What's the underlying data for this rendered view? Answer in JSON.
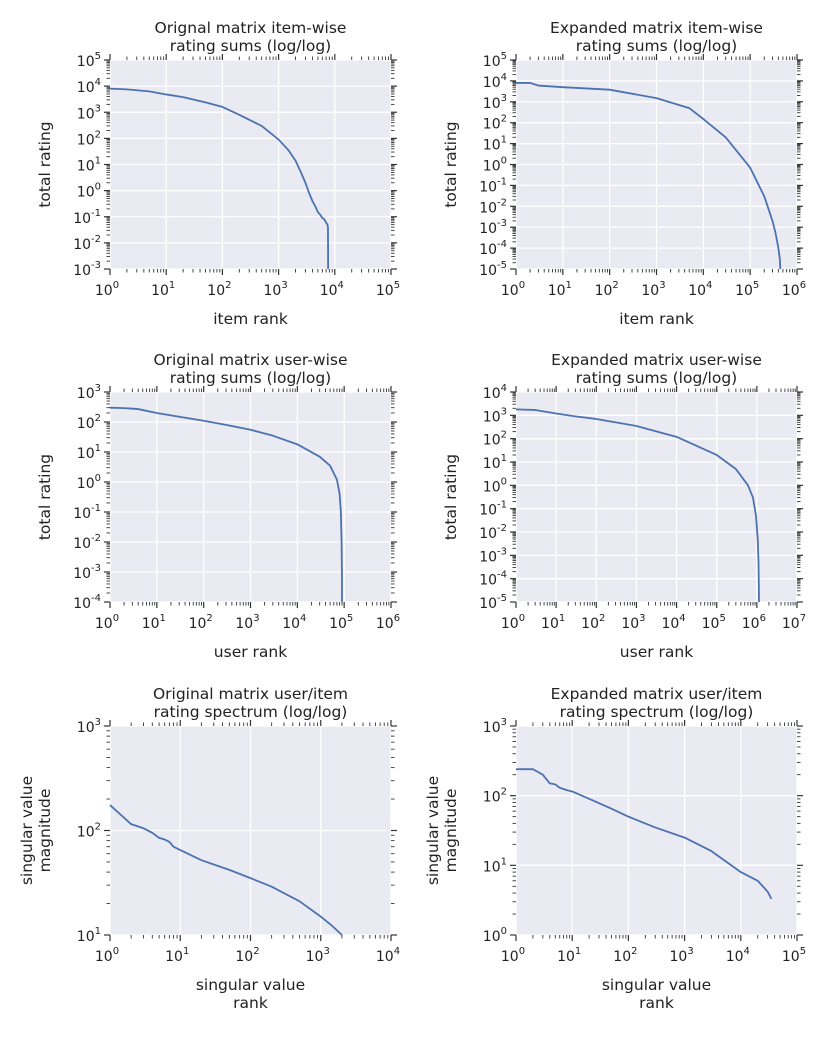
{
  "colors": {
    "plot_background": "#eaeaf2",
    "grid": "#ffffff",
    "line": "#4c72b0",
    "tick": "#333333",
    "text": "#222222"
  },
  "chart_data": [
    {
      "type": "line",
      "title_lines": [
        "Orignal matrix item-wise",
        "rating sums (log/log)"
      ],
      "xlabel_lines": [
        "item rank"
      ],
      "ylabel_lines": [
        "total rating"
      ],
      "xscale": "log",
      "yscale": "log",
      "xlim_exp": [
        0,
        5
      ],
      "ylim_exp": [
        -3,
        5
      ],
      "xticks_exp": [
        0,
        1,
        2,
        3,
        4,
        5
      ],
      "yticks_exp": [
        -3,
        -2,
        -1,
        0,
        1,
        2,
        3,
        4,
        5
      ],
      "xtick_labels": [
        {
          "base": "10",
          "exp": "0"
        },
        {
          "base": "10",
          "exp": "1"
        },
        {
          "base": "10",
          "exp": "2"
        },
        {
          "base": "10",
          "exp": "3"
        },
        {
          "base": "10",
          "exp": "4"
        },
        {
          "base": "10",
          "exp": "5"
        }
      ],
      "ytick_labels": [
        {
          "base": "10",
          "exp": "-3"
        },
        {
          "base": "10",
          "exp": "-2"
        },
        {
          "base": "10",
          "exp": "-1"
        },
        {
          "base": "10",
          "exp": "0"
        },
        {
          "base": "10",
          "exp": "1"
        },
        {
          "base": "10",
          "exp": "2"
        },
        {
          "base": "10",
          "exp": "3"
        },
        {
          "base": "10",
          "exp": "4"
        },
        {
          "base": "10",
          "exp": "5"
        }
      ],
      "series": [
        {
          "name": "item-wise rating sums",
          "x": [
            1,
            2,
            5,
            10,
            20,
            50,
            100,
            200,
            500,
            1000,
            1500,
            2000,
            2500,
            3000,
            3500,
            4000,
            4500,
            5000,
            5500,
            6000,
            6500,
            7000,
            7400,
            7550,
            7600,
            7600
          ],
          "y": [
            8000,
            7500,
            6300,
            4800,
            3800,
            2400,
            1600,
            800,
            300,
            90,
            35,
            14,
            5,
            2,
            0.8,
            0.4,
            0.25,
            0.15,
            0.12,
            0.09,
            0.08,
            0.06,
            0.05,
            0.04,
            0.004,
            0.001
          ]
        }
      ]
    },
    {
      "type": "line",
      "title_lines": [
        "Expanded matrix item-wise",
        "rating sums (log/log)"
      ],
      "xlabel_lines": [
        "item rank"
      ],
      "ylabel_lines": [
        "total rating"
      ],
      "xscale": "log",
      "yscale": "log",
      "xlim_exp": [
        0,
        6
      ],
      "ylim_exp": [
        -5,
        5
      ],
      "xticks_exp": [
        0,
        1,
        2,
        3,
        4,
        5,
        6
      ],
      "yticks_exp": [
        -5,
        -4,
        -3,
        -2,
        -1,
        0,
        1,
        2,
        3,
        4,
        5
      ],
      "xtick_labels": [
        {
          "base": "10",
          "exp": "0"
        },
        {
          "base": "10",
          "exp": "1"
        },
        {
          "base": "10",
          "exp": "2"
        },
        {
          "base": "10",
          "exp": "3"
        },
        {
          "base": "10",
          "exp": "4"
        },
        {
          "base": "10",
          "exp": "5"
        },
        {
          "base": "10",
          "exp": "6"
        }
      ],
      "ytick_labels": [
        {
          "base": "10",
          "exp": "-5"
        },
        {
          "base": "10",
          "exp": "-4"
        },
        {
          "base": "10",
          "exp": "-3"
        },
        {
          "base": "10",
          "exp": "-2"
        },
        {
          "base": "10",
          "exp": "-1"
        },
        {
          "base": "10",
          "exp": "0"
        },
        {
          "base": "10",
          "exp": "1"
        },
        {
          "base": "10",
          "exp": "2"
        },
        {
          "base": "10",
          "exp": "3"
        },
        {
          "base": "10",
          "exp": "4"
        },
        {
          "base": "10",
          "exp": "5"
        }
      ],
      "series": [
        {
          "name": "item-wise rating sums",
          "x": [
            1,
            2,
            3,
            10,
            100,
            1000,
            5000,
            10000,
            30000,
            100000,
            200000,
            300000,
            350000,
            400000,
            430000,
            440000
          ],
          "y": [
            8000,
            8000,
            6000,
            5000,
            3800,
            1500,
            500,
            150,
            20,
            0.7,
            0.03,
            0.002,
            0.0005,
            0.0001,
            3e-05,
            1e-05
          ]
        }
      ]
    },
    {
      "type": "line",
      "title_lines": [
        "Original matrix user-wise",
        "rating sums (log/log)"
      ],
      "xlabel_lines": [
        "user rank"
      ],
      "ylabel_lines": [
        "total rating"
      ],
      "xscale": "log",
      "yscale": "log",
      "xlim_exp": [
        0,
        6
      ],
      "ylim_exp": [
        -4,
        3
      ],
      "xticks_exp": [
        0,
        1,
        2,
        3,
        4,
        5,
        6
      ],
      "yticks_exp": [
        -4,
        -3,
        -2,
        -1,
        0,
        1,
        2,
        3
      ],
      "xtick_labels": [
        {
          "base": "10",
          "exp": "0"
        },
        {
          "base": "10",
          "exp": "1"
        },
        {
          "base": "10",
          "exp": "2"
        },
        {
          "base": "10",
          "exp": "3"
        },
        {
          "base": "10",
          "exp": "4"
        },
        {
          "base": "10",
          "exp": "5"
        },
        {
          "base": "10",
          "exp": "6"
        }
      ],
      "ytick_labels": [
        {
          "base": "10",
          "exp": "-4"
        },
        {
          "base": "10",
          "exp": "-3"
        },
        {
          "base": "10",
          "exp": "-2"
        },
        {
          "base": "10",
          "exp": "-1"
        },
        {
          "base": "10",
          "exp": "0"
        },
        {
          "base": "10",
          "exp": "1"
        },
        {
          "base": "10",
          "exp": "2"
        },
        {
          "base": "10",
          "exp": "3"
        }
      ],
      "series": [
        {
          "name": "user-wise rating sums",
          "x": [
            1,
            2,
            4,
            10,
            30,
            100,
            300,
            1000,
            3000,
            10000,
            30000,
            50000,
            70000,
            80000,
            85000,
            88000,
            90000,
            90000
          ],
          "y": [
            300,
            290,
            270,
            200,
            150,
            110,
            80,
            55,
            35,
            18,
            7,
            3.5,
            1.2,
            0.4,
            0.1,
            0.01,
            0.0005,
            0.0001
          ]
        }
      ]
    },
    {
      "type": "line",
      "title_lines": [
        "Expanded matrix user-wise",
        "rating sums (log/log)"
      ],
      "xlabel_lines": [
        "user rank"
      ],
      "ylabel_lines": [
        "total rating"
      ],
      "xscale": "log",
      "yscale": "log",
      "xlim_exp": [
        0,
        7
      ],
      "ylim_exp": [
        -5,
        4
      ],
      "xticks_exp": [
        0,
        1,
        2,
        3,
        4,
        5,
        6,
        7
      ],
      "yticks_exp": [
        -5,
        -4,
        -3,
        -2,
        -1,
        0,
        1,
        2,
        3,
        4
      ],
      "xtick_labels": [
        {
          "base": "10",
          "exp": "0"
        },
        {
          "base": "10",
          "exp": "1"
        },
        {
          "base": "10",
          "exp": "2"
        },
        {
          "base": "10",
          "exp": "3"
        },
        {
          "base": "10",
          "exp": "4"
        },
        {
          "base": "10",
          "exp": "5"
        },
        {
          "base": "10",
          "exp": "6"
        },
        {
          "base": "10",
          "exp": "7"
        }
      ],
      "ytick_labels": [
        {
          "base": "10",
          "exp": "-5"
        },
        {
          "base": "10",
          "exp": "-4"
        },
        {
          "base": "10",
          "exp": "-3"
        },
        {
          "base": "10",
          "exp": "-2"
        },
        {
          "base": "10",
          "exp": "-1"
        },
        {
          "base": "10",
          "exp": "0"
        },
        {
          "base": "10",
          "exp": "1"
        },
        {
          "base": "10",
          "exp": "2"
        },
        {
          "base": "10",
          "exp": "3"
        },
        {
          "base": "10",
          "exp": "4"
        }
      ],
      "series": [
        {
          "name": "user-wise rating sums",
          "x": [
            1,
            3,
            10,
            30,
            100,
            1000,
            10000,
            100000,
            300000,
            600000,
            800000,
            950000,
            1050000,
            1100000,
            1120000,
            1130000
          ],
          "y": [
            1800,
            1700,
            1200,
            900,
            700,
            350,
            120,
            20,
            5,
            1,
            0.3,
            0.05,
            0.005,
            0.0005,
            5e-05,
            1e-05
          ]
        }
      ]
    },
    {
      "type": "line",
      "title_lines": [
        "Original matrix user/item",
        "rating spectrum (log/log)"
      ],
      "xlabel_lines": [
        "singular value",
        "rank"
      ],
      "ylabel_lines": [
        "singular value",
        "magnitude"
      ],
      "xscale": "log",
      "yscale": "log",
      "xlim_exp": [
        0,
        4
      ],
      "ylim_exp": [
        1,
        3
      ],
      "xticks_exp": [
        0,
        1,
        2,
        3,
        4
      ],
      "yticks_exp": [
        1,
        2,
        3
      ],
      "xtick_labels": [
        {
          "base": "10",
          "exp": "0"
        },
        {
          "base": "10",
          "exp": "1"
        },
        {
          "base": "10",
          "exp": "2"
        },
        {
          "base": "10",
          "exp": "3"
        },
        {
          "base": "10",
          "exp": "4"
        }
      ],
      "ytick_labels": [
        {
          "base": "10",
          "exp": "1"
        },
        {
          "base": "10",
          "exp": "2"
        },
        {
          "base": "10",
          "exp": "3"
        }
      ],
      "series": [
        {
          "name": "singular values",
          "x": [
            1,
            2,
            3,
            4,
            5,
            6,
            7,
            8,
            10,
            20,
            50,
            100,
            200,
            500,
            1000,
            1500,
            2000
          ],
          "y": [
            175,
            115,
            105,
            95,
            85,
            82,
            78,
            70,
            65,
            52,
            42,
            35,
            29,
            21,
            15,
            12,
            10
          ]
        }
      ]
    },
    {
      "type": "line",
      "title_lines": [
        "Expanded matrix user/item",
        "rating spectrum (log/log)"
      ],
      "xlabel_lines": [
        "singular value",
        "rank"
      ],
      "ylabel_lines": [
        "singular value",
        "magnitude"
      ],
      "xscale": "log",
      "yscale": "log",
      "xlim_exp": [
        0,
        5
      ],
      "ylim_exp": [
        0,
        3
      ],
      "xticks_exp": [
        0,
        1,
        2,
        3,
        4,
        5
      ],
      "yticks_exp": [
        0,
        1,
        2,
        3
      ],
      "xtick_labels": [
        {
          "base": "10",
          "exp": "0"
        },
        {
          "base": "10",
          "exp": "1"
        },
        {
          "base": "10",
          "exp": "2"
        },
        {
          "base": "10",
          "exp": "3"
        },
        {
          "base": "10",
          "exp": "4"
        },
        {
          "base": "10",
          "exp": "5"
        }
      ],
      "ytick_labels": [
        {
          "base": "10",
          "exp": "0"
        },
        {
          "base": "10",
          "exp": "1"
        },
        {
          "base": "10",
          "exp": "2"
        },
        {
          "base": "10",
          "exp": "3"
        }
      ],
      "series": [
        {
          "name": "singular values",
          "x": [
            1,
            2,
            3,
            4,
            5,
            6,
            8,
            10,
            20,
            50,
            100,
            300,
            1000,
            3000,
            10000,
            20000,
            30000,
            35000
          ],
          "y": [
            240,
            240,
            200,
            150,
            145,
            130,
            120,
            115,
            90,
            65,
            50,
            35,
            25,
            16,
            8,
            6,
            4.2,
            3.3
          ]
        }
      ]
    }
  ]
}
